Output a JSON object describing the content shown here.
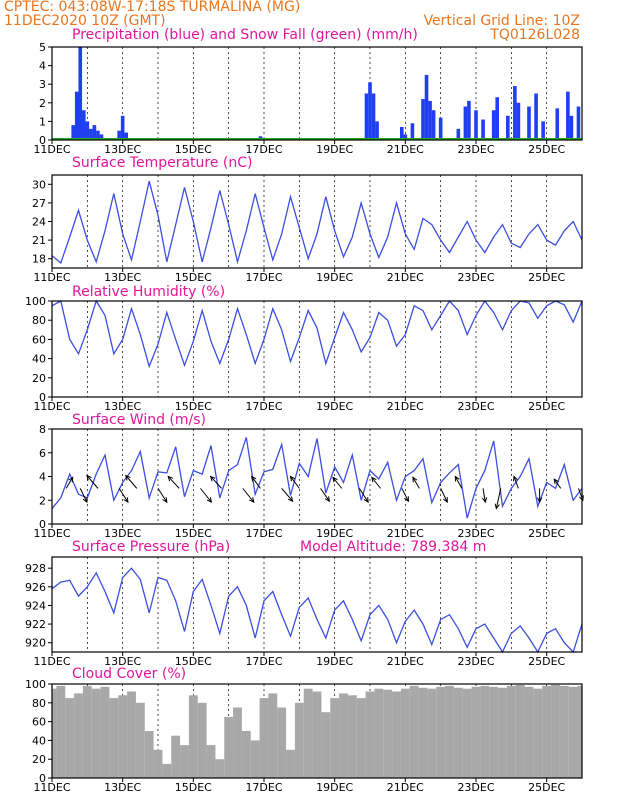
{
  "header": {
    "line1_left": "CPTEC:   043:08W-17:18S   TURMALINA (MG)",
    "line2_left": "11DEC2020 10Z (GMT)",
    "line2_right": "Vertical Grid Line: 10Z",
    "line3_right": "TQ0126L028"
  },
  "colors": {
    "header_text": "#e8761e",
    "panel_title": "#e0169a",
    "precip_bar": "#1f3ff0",
    "snow_line": "#22aa22",
    "series_line": "#3c4fe0",
    "cloud_fill": "#a8a8a8",
    "wind_arrow": "#000000"
  },
  "x_axis": {
    "tick_labels": [
      "11DEC",
      "13DEC",
      "15DEC",
      "17DEC",
      "19DEC",
      "21DEC",
      "23DEC",
      "25DEC"
    ],
    "start_day": 11,
    "end_day": 26
  },
  "chart_data": [
    {
      "type": "bar",
      "title": "Precipitation (blue) and Snow Fall (green) (mm/h)",
      "ylim": [
        0,
        5
      ],
      "yticks": [
        0,
        1,
        2,
        3,
        4,
        5
      ],
      "series": [
        {
          "name": "Precipitation",
          "x": [
            11.6,
            11.7,
            11.8,
            11.9,
            12.0,
            12.1,
            12.2,
            12.3,
            12.4,
            12.9,
            13.0,
            13.1,
            16.9,
            19.9,
            20.0,
            20.1,
            20.2,
            20.9,
            21.0,
            21.2,
            21.5,
            21.6,
            21.7,
            21.8,
            22.0,
            22.5,
            22.7,
            22.8,
            23.0,
            23.2,
            23.5,
            23.6,
            23.9,
            24.1,
            24.2,
            24.5,
            24.7,
            24.9,
            25.3,
            25.6,
            25.7,
            25.9
          ],
          "values": [
            0.8,
            2.6,
            5.0,
            1.6,
            1.0,
            0.6,
            0.8,
            0.5,
            0.3,
            0.5,
            1.3,
            0.4,
            0.2,
            2.5,
            3.1,
            2.5,
            1.0,
            0.7,
            0.3,
            0.9,
            2.2,
            3.5,
            2.1,
            1.6,
            1.2,
            0.6,
            1.8,
            2.1,
            1.6,
            1.1,
            1.6,
            2.3,
            1.3,
            2.9,
            2.0,
            1.8,
            2.5,
            1.0,
            1.7,
            2.6,
            1.3,
            1.8
          ]
        },
        {
          "name": "Snow Fall",
          "x": [
            11.0,
            26.0
          ],
          "values": [
            0,
            0
          ]
        }
      ]
    },
    {
      "type": "line",
      "title": "Surface Temperature (nC)",
      "ylim": [
        16.5,
        31.5
      ],
      "yticks": [
        18,
        21,
        24,
        27,
        30
      ],
      "x": [
        11.0,
        11.25,
        11.5,
        11.75,
        12.0,
        12.25,
        12.5,
        12.75,
        13.0,
        13.25,
        13.5,
        13.75,
        14.0,
        14.25,
        14.5,
        14.75,
        15.0,
        15.25,
        15.5,
        15.75,
        16.0,
        16.25,
        16.5,
        16.75,
        17.0,
        17.25,
        17.5,
        17.75,
        18.0,
        18.25,
        18.5,
        18.75,
        19.0,
        19.25,
        19.5,
        19.75,
        20.0,
        20.25,
        20.5,
        20.75,
        21.0,
        21.25,
        21.5,
        21.75,
        22.0,
        22.25,
        22.5,
        22.75,
        23.0,
        23.25,
        23.5,
        23.75,
        24.0,
        24.25,
        24.5,
        24.75,
        25.0,
        25.25,
        25.5,
        25.75,
        26.0
      ],
      "values": [
        18.5,
        17.3,
        21.5,
        25.8,
        21.0,
        17.5,
        22.5,
        28.5,
        22.0,
        17.8,
        24.0,
        30.5,
        25.0,
        17.5,
        23.5,
        29.5,
        24.0,
        17.5,
        23.0,
        29.0,
        23.5,
        17.5,
        22.5,
        28.5,
        23.0,
        17.8,
        22.0,
        28.0,
        23.0,
        18.0,
        22.0,
        28.0,
        22.5,
        18.3,
        21.5,
        27.0,
        22.0,
        18.2,
        21.5,
        27.0,
        22.0,
        19.5,
        24.5,
        23.5,
        21.0,
        19.0,
        21.5,
        24.0,
        21.0,
        19.0,
        21.5,
        23.5,
        20.5,
        19.8,
        22.0,
        23.5,
        21.0,
        20.2,
        22.5,
        24.0,
        21.0
      ]
    },
    {
      "type": "line",
      "title": "Relative Humidity (%)",
      "ylim": [
        0,
        100
      ],
      "yticks": [
        0,
        20,
        40,
        60,
        80,
        100
      ],
      "x": [
        11.0,
        11.25,
        11.5,
        11.75,
        12.0,
        12.25,
        12.5,
        12.75,
        13.0,
        13.25,
        13.5,
        13.75,
        14.0,
        14.25,
        14.5,
        14.75,
        15.0,
        15.25,
        15.5,
        15.75,
        16.0,
        16.25,
        16.5,
        16.75,
        17.0,
        17.25,
        17.5,
        17.75,
        18.0,
        18.25,
        18.5,
        18.75,
        19.0,
        19.25,
        19.5,
        19.75,
        20.0,
        20.25,
        20.5,
        20.75,
        21.0,
        21.25,
        21.5,
        21.75,
        22.0,
        22.25,
        22.5,
        22.75,
        23.0,
        23.25,
        23.5,
        23.75,
        24.0,
        24.25,
        24.5,
        24.75,
        25.0,
        25.25,
        25.5,
        25.75,
        26.0
      ],
      "values": [
        95,
        100,
        60,
        45,
        70,
        100,
        85,
        45,
        60,
        92,
        65,
        32,
        55,
        88,
        60,
        33,
        58,
        90,
        58,
        35,
        60,
        92,
        65,
        35,
        60,
        92,
        70,
        37,
        62,
        90,
        72,
        35,
        62,
        88,
        70,
        47,
        62,
        88,
        80,
        53,
        65,
        95,
        90,
        70,
        85,
        100,
        90,
        65,
        85,
        100,
        88,
        70,
        90,
        100,
        98,
        82,
        95,
        100,
        96,
        78,
        100
      ]
    },
    {
      "type": "line",
      "title": "Surface Wind (m/s)",
      "ylim": [
        0,
        8
      ],
      "yticks": [
        0,
        2,
        4,
        6,
        8
      ],
      "x": [
        11.0,
        11.25,
        11.5,
        11.75,
        12.0,
        12.25,
        12.5,
        12.75,
        13.0,
        13.25,
        13.5,
        13.75,
        14.0,
        14.25,
        14.5,
        14.75,
        15.0,
        15.25,
        15.5,
        15.75,
        16.0,
        16.25,
        16.5,
        16.75,
        17.0,
        17.25,
        17.5,
        17.75,
        18.0,
        18.25,
        18.5,
        18.75,
        19.0,
        19.25,
        19.5,
        19.75,
        20.0,
        20.25,
        20.5,
        20.75,
        21.0,
        21.25,
        21.5,
        21.75,
        22.0,
        22.25,
        22.5,
        22.75,
        23.0,
        23.25,
        23.5,
        23.75,
        24.0,
        24.25,
        24.5,
        24.75,
        25.0,
        25.25,
        25.5,
        25.75,
        26.0
      ],
      "values": [
        1.3,
        2.2,
        4.2,
        2.5,
        2.2,
        4.2,
        5.8,
        2.0,
        3.5,
        4.5,
        6.1,
        2.2,
        4.4,
        4.3,
        6.5,
        2.3,
        4.5,
        4.2,
        6.6,
        2.2,
        4.5,
        5.0,
        7.3,
        2.5,
        4.4,
        4.6,
        6.7,
        2.4,
        5.1,
        4.0,
        7.2,
        2.6,
        4.8,
        3.5,
        5.8,
        2.0,
        4.5,
        3.8,
        5.2,
        2.0,
        4.0,
        4.5,
        5.5,
        1.8,
        3.5,
        4.3,
        5.0,
        0.5,
        3.0,
        4.5,
        7.0,
        1.5,
        3.0,
        4.0,
        5.5,
        1.5,
        3.5,
        3.0,
        5.0,
        2.0,
        3.0
      ],
      "arrows": [
        {
          "x": 11.4,
          "dx": 0.3,
          "dy": 1.2
        },
        {
          "x": 11.8,
          "dx": 0.3,
          "dy": -1.5
        },
        {
          "x": 12.3,
          "dx": -0.5,
          "dy": 1.4
        },
        {
          "x": 12.9,
          "dx": 0.4,
          "dy": -1.5
        },
        {
          "x": 13.4,
          "dx": -0.5,
          "dy": 1.4
        },
        {
          "x": 14.0,
          "dx": 0.4,
          "dy": -1.5
        },
        {
          "x": 14.6,
          "dx": -0.5,
          "dy": 1.3
        },
        {
          "x": 15.2,
          "dx": 0.5,
          "dy": -1.5
        },
        {
          "x": 15.8,
          "dx": -0.5,
          "dy": 1.3
        },
        {
          "x": 16.4,
          "dx": 0.5,
          "dy": -1.5
        },
        {
          "x": 16.9,
          "dx": -0.4,
          "dy": 1.3
        },
        {
          "x": 17.5,
          "dx": 0.5,
          "dy": -1.4
        },
        {
          "x": 18.0,
          "dx": -0.4,
          "dy": 1.3
        },
        {
          "x": 18.6,
          "dx": 0.4,
          "dy": -1.4
        },
        {
          "x": 19.2,
          "dx": -0.4,
          "dy": 1.2
        },
        {
          "x": 19.7,
          "dx": 0.4,
          "dy": -1.5
        },
        {
          "x": 20.3,
          "dx": -0.4,
          "dy": 1.2
        },
        {
          "x": 20.9,
          "dx": 0.3,
          "dy": -1.4
        },
        {
          "x": 21.4,
          "dx": -0.3,
          "dy": 1.2
        },
        {
          "x": 22.0,
          "dx": 0.3,
          "dy": -1.5
        },
        {
          "x": 22.6,
          "dx": -0.3,
          "dy": 1.3
        },
        {
          "x": 23.2,
          "dx": 0.1,
          "dy": -1.5
        },
        {
          "x": 23.7,
          "dx": -0.2,
          "dy": -2.2
        },
        {
          "x": 24.2,
          "dx": -0.2,
          "dy": 1.3
        },
        {
          "x": 24.8,
          "dx": 0.0,
          "dy": -1.5
        },
        {
          "x": 25.4,
          "dx": -0.3,
          "dy": 1.0
        },
        {
          "x": 25.9,
          "dx": 0.2,
          "dy": -1.3
        }
      ]
    },
    {
      "type": "line",
      "title": "Surface Pressure (hPa)",
      "annotation": "Model Altitude: 789.384  m",
      "ylim": [
        919,
        929.2
      ],
      "yticks": [
        920,
        922,
        924,
        926,
        928
      ],
      "x": [
        11.0,
        11.25,
        11.5,
        11.75,
        12.0,
        12.25,
        12.5,
        12.75,
        13.0,
        13.25,
        13.5,
        13.75,
        14.0,
        14.25,
        14.5,
        14.75,
        15.0,
        15.25,
        15.5,
        15.75,
        16.0,
        16.25,
        16.5,
        16.75,
        17.0,
        17.25,
        17.5,
        17.75,
        18.0,
        18.25,
        18.5,
        18.75,
        19.0,
        19.25,
        19.5,
        19.75,
        20.0,
        20.25,
        20.5,
        20.75,
        21.0,
        21.25,
        21.5,
        21.75,
        22.0,
        22.25,
        22.5,
        22.75,
        23.0,
        23.25,
        23.5,
        23.75,
        24.0,
        24.25,
        24.5,
        24.75,
        25.0,
        25.25,
        25.5,
        25.75,
        26.0
      ],
      "values": [
        925.8,
        926.5,
        926.7,
        925.0,
        926.0,
        927.5,
        925.5,
        923.2,
        927.0,
        928.0,
        926.8,
        923.2,
        927.0,
        926.7,
        924.5,
        921.2,
        925.5,
        926.8,
        924.0,
        921.0,
        925.0,
        926.0,
        924.0,
        920.5,
        924.5,
        925.5,
        923.0,
        920.7,
        923.8,
        924.8,
        922.5,
        920.5,
        923.5,
        924.5,
        922.5,
        920.2,
        923.0,
        924.0,
        922.5,
        920.0,
        922.3,
        923.5,
        922.0,
        919.8,
        922.5,
        923.0,
        921.5,
        919.5,
        921.5,
        922.0,
        920.5,
        918.9,
        921.0,
        921.8,
        920.5,
        918.8,
        921.0,
        921.5,
        920.0,
        918.8,
        922.0
      ]
    },
    {
      "type": "area",
      "title": "Cloud Cover (%)",
      "ylim": [
        0,
        100
      ],
      "yticks": [
        0,
        20,
        40,
        60,
        80,
        100
      ],
      "x": [
        11.0,
        11.25,
        11.5,
        11.75,
        12.0,
        12.25,
        12.5,
        12.75,
        13.0,
        13.25,
        13.5,
        13.75,
        14.0,
        14.25,
        14.5,
        14.75,
        15.0,
        15.25,
        15.5,
        15.75,
        16.0,
        16.25,
        16.5,
        16.75,
        17.0,
        17.25,
        17.5,
        17.75,
        18.0,
        18.25,
        18.5,
        18.75,
        19.0,
        19.25,
        19.5,
        19.75,
        20.0,
        20.25,
        20.5,
        20.75,
        21.0,
        21.25,
        21.5,
        21.75,
        22.0,
        22.25,
        22.5,
        22.75,
        23.0,
        23.25,
        23.5,
        23.75,
        24.0,
        24.25,
        24.5,
        24.75,
        25.0,
        25.25,
        25.5,
        25.75,
        26.0
      ],
      "values": [
        95,
        98,
        85,
        90,
        98,
        95,
        97,
        85,
        88,
        92,
        80,
        50,
        30,
        15,
        45,
        35,
        88,
        80,
        35,
        20,
        65,
        75,
        50,
        40,
        85,
        90,
        75,
        30,
        80,
        95,
        92,
        70,
        85,
        90,
        88,
        85,
        92,
        95,
        94,
        92,
        95,
        98,
        96,
        95,
        97,
        98,
        96,
        95,
        97,
        98,
        97,
        96,
        98,
        99,
        97,
        95,
        98,
        99,
        98,
        97,
        98
      ]
    }
  ]
}
